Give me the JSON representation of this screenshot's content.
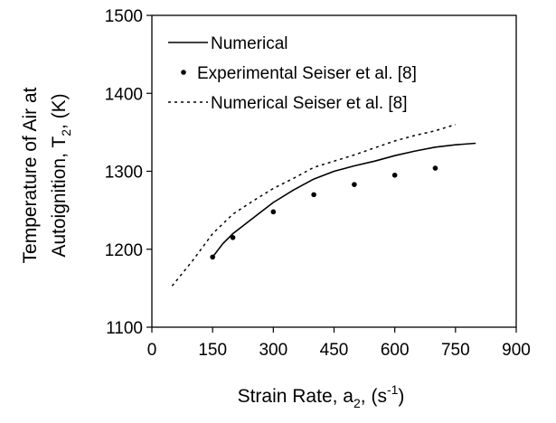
{
  "chart_data": {
    "type": "line",
    "xlabel": {
      "main": "Strain Rate, a",
      "sub": "2",
      "tail": ", (s",
      "sup": "-1",
      "end": ")"
    },
    "ylabel": {
      "line1": "Temperature of Air at",
      "line2_main": "Autoignition, T",
      "line2_sub": "2",
      "line2_tail": ", (K)"
    },
    "xlim": [
      0,
      900
    ],
    "ylim": [
      1100,
      1500
    ],
    "xticks": [
      0,
      150,
      300,
      450,
      600,
      750,
      900
    ],
    "yticks": [
      1100,
      1200,
      1300,
      1400,
      1500
    ],
    "grid": false,
    "legend_position": "top-left",
    "series": [
      {
        "name": "Numerical",
        "style": "solid-line",
        "color": "#000000",
        "x": [
          150,
          175,
          200,
          250,
          300,
          350,
          400,
          450,
          500,
          550,
          600,
          650,
          700,
          750,
          800
        ],
        "y": [
          1190,
          1207,
          1220,
          1240,
          1260,
          1276,
          1290,
          1300,
          1307,
          1313,
          1320,
          1326,
          1331,
          1334,
          1336
        ]
      },
      {
        "name": "Experimental Seiser et al. [8]",
        "style": "markers",
        "color": "#000000",
        "x": [
          150,
          200,
          300,
          400,
          500,
          600,
          700
        ],
        "y": [
          1190,
          1215,
          1248,
          1270,
          1283,
          1295,
          1304
        ]
      },
      {
        "name": "Numerical Seiser et al. [8]",
        "style": "dotted-line",
        "color": "#000000",
        "x": [
          50,
          100,
          150,
          200,
          250,
          300,
          350,
          400,
          450,
          500,
          550,
          600,
          650,
          700,
          750
        ],
        "y": [
          1153,
          1185,
          1220,
          1245,
          1262,
          1278,
          1291,
          1305,
          1313,
          1321,
          1330,
          1339,
          1346,
          1352,
          1360
        ]
      }
    ]
  }
}
